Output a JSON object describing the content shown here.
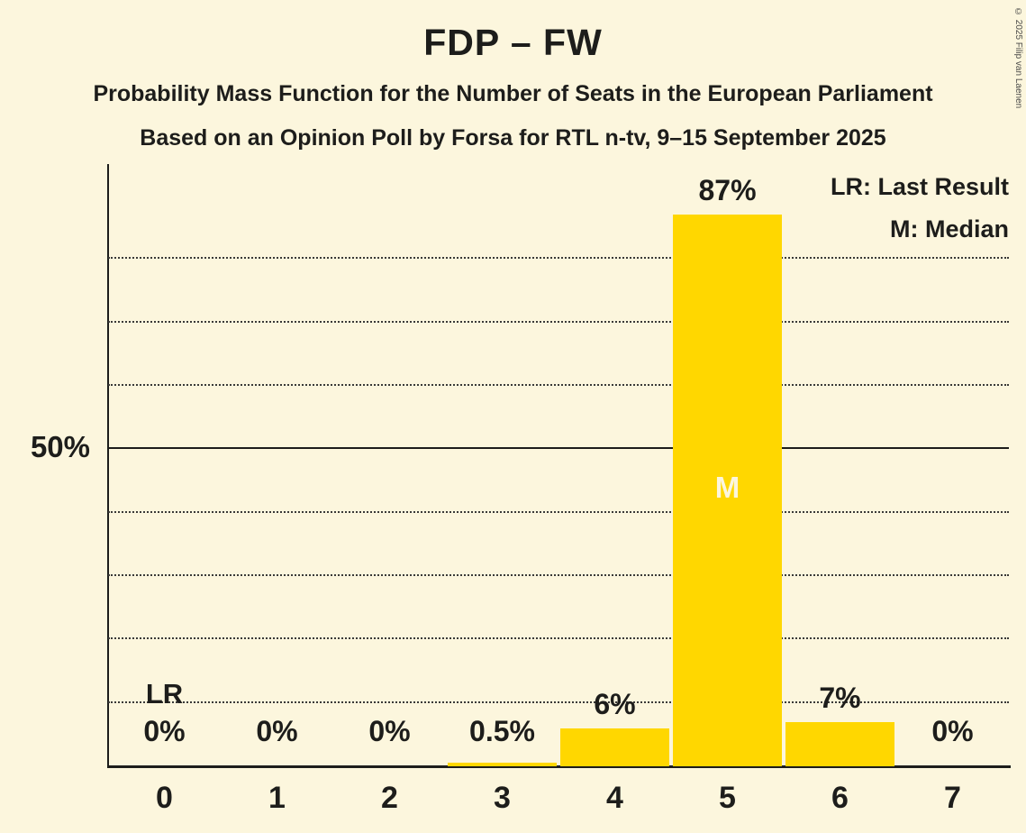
{
  "header": {
    "title": "FDP – FW",
    "subtitle1": "Probability Mass Function for the Number of Seats in the European Parliament",
    "subtitle2": "Based on an Opinion Poll by Forsa for RTL n-tv, 9–15 September 2025"
  },
  "legend": {
    "lr": "LR: Last Result",
    "m": "M: Median"
  },
  "copyright": "© 2025 Filip van Laenen",
  "chart_data": {
    "type": "bar",
    "title": "FDP – FW",
    "categories": [
      "0",
      "1",
      "2",
      "3",
      "4",
      "5",
      "6",
      "7"
    ],
    "values": [
      0,
      0,
      0,
      0.5,
      6,
      87,
      7,
      0
    ],
    "value_labels": [
      "0%",
      "0%",
      "0%",
      "0.5%",
      "6%",
      "87%",
      "7%",
      "0%"
    ],
    "median_index": 5,
    "median_marker": "M",
    "last_result_index": 0,
    "last_result_marker": "LR",
    "y_axis_label": "50%",
    "ylim": [
      0,
      95
    ],
    "solid_gridline_at": 50,
    "dotted_gridlines_at": [
      10,
      20,
      30,
      40,
      60,
      70,
      80
    ],
    "bar_color": "#ffd700",
    "background_color": "#fcf6dd",
    "legend_position": "top-right",
    "grid": true
  }
}
